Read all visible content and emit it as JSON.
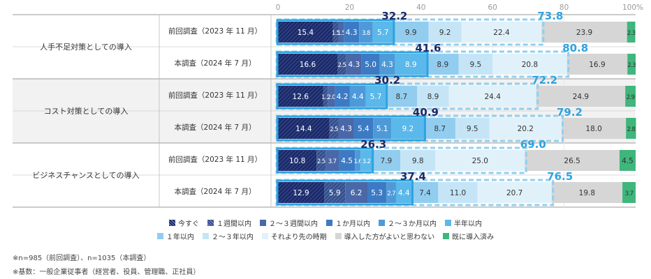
{
  "chart_data": {
    "type": "bar",
    "orientation": "horizontal",
    "stacked": true,
    "percent": true,
    "xlim": [
      0,
      100
    ],
    "x_ticks": [
      "0",
      "20",
      "40",
      "60",
      "80",
      "100%"
    ],
    "groups": [
      "人手不足対策としての導入",
      "コスト対策としての導入",
      "ビジネスチャンスとしての導入"
    ],
    "rows": [
      {
        "group": 0,
        "label": "前回調査（2023 年 11 月）",
        "values": [
          15.4,
          1.5,
          1.5,
          4.3,
          3.8,
          5.7,
          9.9,
          9.2,
          22.4,
          23.9,
          2.3
        ],
        "cum_1y": 32.2,
        "cum_all": 73.8
      },
      {
        "group": 0,
        "label": "本調査（2024 年 7 月）",
        "values": [
          16.6,
          2.5,
          4.3,
          5.0,
          4.3,
          8.9,
          8.9,
          9.5,
          20.8,
          16.9,
          2.3
        ],
        "cum_1y": 41.6,
        "cum_all": 80.8
      },
      {
        "group": 1,
        "label": "前回調査（2023 年 11 月）",
        "values": [
          12.6,
          1.3,
          2.0,
          4.2,
          4.4,
          5.7,
          8.7,
          8.9,
          24.4,
          24.9,
          2.9
        ],
        "cum_1y": 30.2,
        "cum_all": 72.2
      },
      {
        "group": 1,
        "label": "本調査（2024 年 7 月）",
        "values": [
          14.4,
          2.5,
          4.3,
          5.4,
          5.1,
          9.2,
          8.7,
          9.5,
          20.2,
          18.0,
          2.8
        ],
        "cum_1y": 40.9,
        "cum_all": 79.2
      },
      {
        "group": 2,
        "label": "前回調査（2023 年 11 月）",
        "values": [
          10.8,
          2.5,
          3.7,
          4.5,
          1.6,
          3.2,
          7.9,
          9.8,
          25.0,
          26.5,
          4.5
        ],
        "cum_1y": 26.3,
        "cum_all": 69.0
      },
      {
        "group": 2,
        "label": "本調査（2024 年 7 月）",
        "values": [
          12.9,
          5.9,
          6.2,
          5.3,
          2.7,
          4.4,
          7.4,
          11.0,
          20.7,
          19.8,
          3.7
        ],
        "cum_1y": 37.4,
        "cum_all": 76.5
      }
    ],
    "labels_text": [
      [
        "15.4",
        "1.5",
        "1.5",
        "4.3",
        "3.8",
        "5.7",
        "9.9",
        "9.2",
        "22.4",
        "23.9",
        "2.3"
      ],
      [
        "16.6",
        "2.5",
        "4.3",
        "5.0",
        "4.3",
        "8.9",
        "8.9",
        "9.5",
        "20.8",
        "16.9",
        "2.3"
      ],
      [
        "12.6",
        "1.3",
        "2.0",
        "4.2",
        "4.4",
        "5.7",
        "8.7",
        "8.9",
        "24.4",
        "24.9",
        "2.9"
      ],
      [
        "14.4",
        "2.5",
        "4.3",
        "5.4",
        "5.1",
        "9.2",
        "8.7",
        "9.5",
        "20.2",
        "18.0",
        "2.8"
      ],
      [
        "10.8",
        "2.5",
        "3.7",
        "4.5",
        "1.6",
        "3.2",
        "7.9",
        "9.8",
        "25.0",
        "26.5",
        "4.5"
      ],
      [
        "12.9",
        "5.9",
        "6.2",
        "5.3",
        "2.7",
        "4.4",
        "7.4",
        "11.0",
        "20.7",
        "19.8",
        "3.7"
      ]
    ],
    "series": [
      {
        "name": "今すぐ",
        "color": "#1b2a6b",
        "hatched": true,
        "label_color": "#ffffff"
      },
      {
        "name": "１週間以内",
        "color": "#34508f",
        "hatched": true,
        "label_color": "#ffffff"
      },
      {
        "name": "２～３週間以内",
        "color": "#4a67a8",
        "label_color": "#ffffff"
      },
      {
        "name": "１か月以内",
        "color": "#3c7ac4",
        "label_color": "#ffffff"
      },
      {
        "name": "２～３か月以内",
        "color": "#4e9ad8",
        "label_color": "#ffffff"
      },
      {
        "name": "半年以内",
        "color": "#5ab8ea",
        "label_color": "#ffffff"
      },
      {
        "name": "１年以内",
        "color": "#92cdef",
        "label_color": "#333333"
      },
      {
        "name": "２～３年以内",
        "color": "#c5e5f6",
        "label_color": "#333333"
      },
      {
        "name": "それより先の時期",
        "color": "#e1f1fa",
        "label_color": "#333333"
      },
      {
        "name": "導入した方がよいと思わない",
        "color": "#d6d6d6",
        "label_color": "#333333"
      },
      {
        "name": "既に導入済み",
        "color": "#3fb67b",
        "label_color": "#333333"
      }
    ],
    "callout_colors": {
      "cum_1y": "#1b2a6b",
      "cum_all": "#2ea3e0",
      "outline": "#2ea3e0",
      "outline_dashed": "#8fd0f2"
    },
    "legend": {
      "row1": [
        0,
        1,
        2,
        3,
        4,
        5
      ],
      "row2": [
        6,
        7,
        8,
        9,
        10
      ]
    }
  },
  "notes": [
    "※n=985（前回調査）、n=1035（本調査）",
    "※基数：一般企業従事者（経営者、役員、管理職、正社員）"
  ]
}
